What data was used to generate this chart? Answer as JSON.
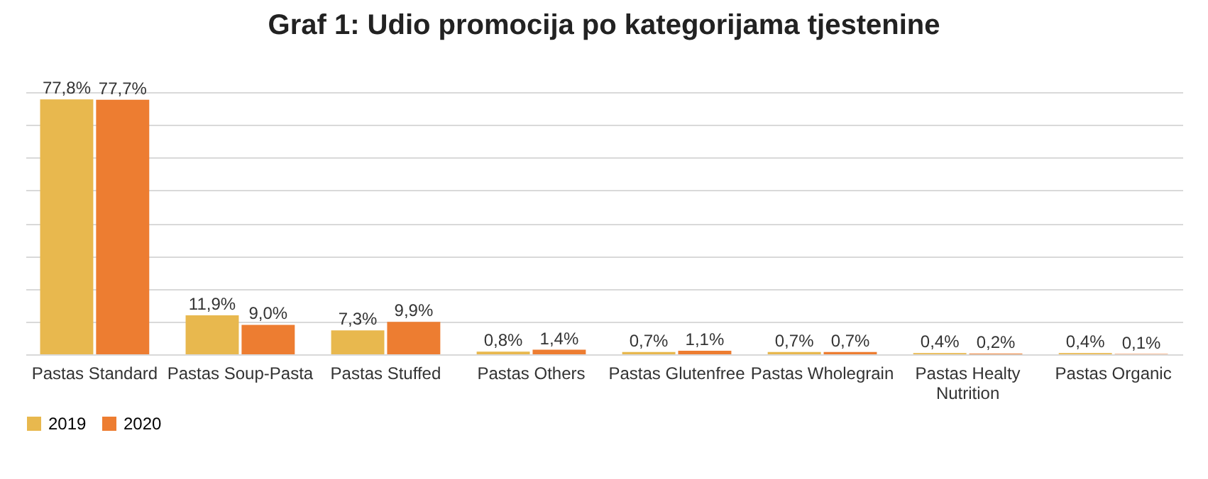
{
  "chart_data": {
    "type": "bar",
    "title": "Graf 1: Udio promocija po kategorijama tjestenine",
    "categories": [
      "Pastas Standard",
      "Pastas Soup-Pasta",
      "Pastas Stuffed",
      "Pastas Others",
      "Pastas Glutenfree",
      "Pastas Wholegrain",
      "Pastas Healty Nutrition",
      "Pastas Organic"
    ],
    "series": [
      {
        "name": "2019",
        "color": "#e8b84e",
        "values": [
          77.8,
          11.9,
          7.3,
          0.8,
          0.7,
          0.7,
          0.4,
          0.4
        ],
        "value_labels": [
          "77,8%",
          "11,9%",
          "7,3%",
          "0,8%",
          "0,7%",
          "0,7%",
          "0,4%",
          "0,4%"
        ]
      },
      {
        "name": "2020",
        "color": "#ed7d31",
        "values": [
          77.7,
          9.0,
          9.9,
          1.4,
          1.1,
          0.7,
          0.2,
          0.1
        ],
        "value_labels": [
          "77,7%",
          "9,0%",
          "9,9%",
          "1,4%",
          "1,1%",
          "0,7%",
          "0,2%",
          "0,1%"
        ]
      }
    ],
    "ylim": [
      0,
      80
    ],
    "tick_labels": "x",
    "grid": "y",
    "legend": "bottom"
  }
}
